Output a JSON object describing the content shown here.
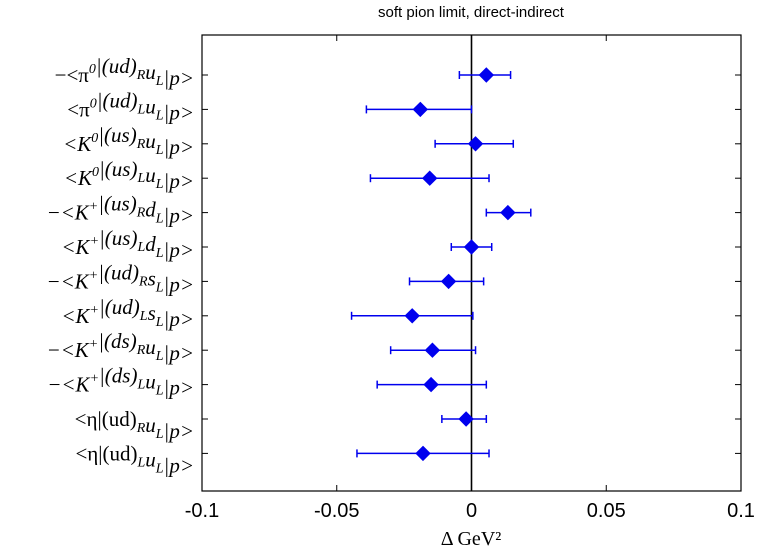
{
  "chart_data": {
    "type": "scatter",
    "orientation": "horizontal-errorbar",
    "title": "soft pion limit, direct-indirect",
    "xlabel": "Δ GeV²",
    "xlim": [
      -0.1,
      0.1
    ],
    "xticks": [
      "-0.1",
      "-0.05",
      "0",
      "0.05",
      "0.1"
    ],
    "xtick_values": [
      -0.1,
      -0.05,
      0,
      0.05,
      0.1
    ],
    "reference_line_x": 0,
    "grid": false,
    "colors": {
      "marker": "#0000ee",
      "axes": "#000000"
    },
    "categories": [
      "−<π⁰|(ud)_R u_L|p>",
      "<π⁰|(ud)_L u_L|p>",
      "<K⁰|(us)_R u_L|p>",
      "<K⁰|(us)_L u_L|p>",
      "−<K⁺|(us)_R d_L|p>",
      "<K⁺|(us)_L d_L|p>",
      "−<K⁺|(ud)_R s_L|p>",
      "<K⁺|(ud)_L s_L|p>",
      "−<K⁺|(ds)_R u_L|p>",
      "−<K⁺|(ds)_L u_L|p>",
      "<η|(ud)_R u_L|p>",
      "<η|(ud)_L u_L|p>"
    ],
    "series": [
      {
        "values": [
          0.0055,
          -0.019,
          0.0015,
          -0.0155,
          0.0135,
          0.0,
          -0.0085,
          -0.022,
          -0.0145,
          -0.015,
          -0.002,
          -0.018
        ],
        "err_low": [
          -0.0045,
          -0.039,
          -0.0135,
          -0.0375,
          0.0055,
          -0.0075,
          -0.023,
          -0.0445,
          -0.03,
          -0.035,
          -0.011,
          -0.0425
        ],
        "err_high": [
          0.0145,
          0.0,
          0.0155,
          0.0065,
          0.022,
          0.0075,
          0.0045,
          0.0005,
          0.0015,
          0.0055,
          0.0055,
          0.0065
        ]
      }
    ]
  }
}
